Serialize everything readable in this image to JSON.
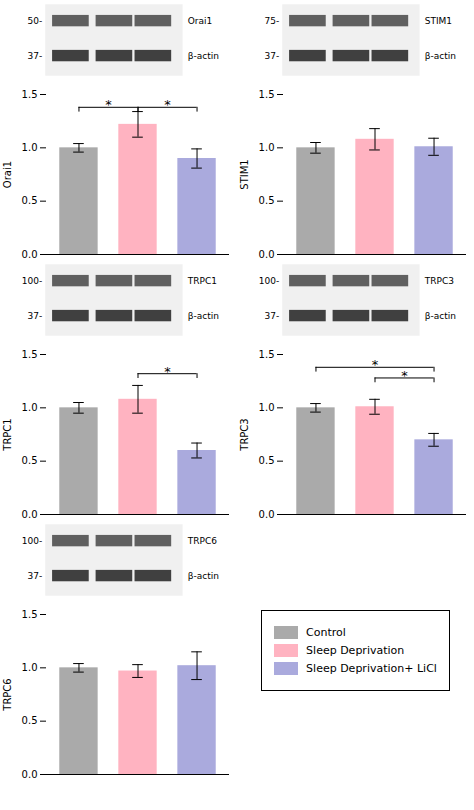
{
  "chart_data": [
    {
      "type": "bar",
      "categories": [
        "Control",
        "Sleep Deprivation",
        "Sleep Deprivation+ LiCl"
      ],
      "colors": [
        "#AAAAAA",
        "#FFB3C1",
        "#AAAADD"
      ],
      "values": [
        1.0,
        1.22,
        0.9
      ],
      "errors": [
        0.04,
        0.12,
        0.09
      ],
      "ylabel": "Orai1",
      "ylim": [
        0.0,
        1.5
      ],
      "yticks": [
        {
          "value": 0.0,
          "label": "0.0"
        },
        {
          "value": 0.5,
          "label": "0.5"
        },
        {
          "value": 1.0,
          "label": "1.0"
        },
        {
          "value": 1.5,
          "label": "1.5"
        }
      ],
      "tick_labels": "y",
      "annotations": [
        {
          "text": "*",
          "from": "Control",
          "to": "Sleep Deprivation",
          "y": 1.38
        },
        {
          "text": "*",
          "from": "Sleep Deprivation",
          "to": "Sleep Deprivation+ LiCl",
          "y": 1.38
        }
      ],
      "blot": {
        "kda": [
          "50-",
          "37-"
        ],
        "labels": [
          "Orai1",
          "β-actin"
        ]
      }
    },
    {
      "type": "bar",
      "categories": [
        "Control",
        "Sleep Deprivation",
        "Sleep Deprivation+ LiCl"
      ],
      "colors": [
        "#AAAAAA",
        "#FFB3C1",
        "#AAAADD"
      ],
      "values": [
        1.0,
        1.08,
        1.01
      ],
      "errors": [
        0.05,
        0.1,
        0.08
      ],
      "ylabel": "STIM1",
      "ylim": [
        0.0,
        1.5
      ],
      "yticks": [
        {
          "value": 0.0,
          "label": "0.0"
        },
        {
          "value": 0.5,
          "label": "0.5"
        },
        {
          "value": 1.0,
          "label": "1.0"
        },
        {
          "value": 1.5,
          "label": "1.5"
        }
      ],
      "tick_labels": "y",
      "annotations": [],
      "blot": {
        "kda": [
          "75-",
          "37-"
        ],
        "labels": [
          "STIM1",
          "β-actin"
        ]
      }
    },
    {
      "type": "bar",
      "categories": [
        "Control",
        "Sleep Deprivation",
        "Sleep Deprivation+ LiCl"
      ],
      "colors": [
        "#AAAAAA",
        "#FFB3C1",
        "#AAAADD"
      ],
      "values": [
        1.0,
        1.08,
        0.6
      ],
      "errors": [
        0.05,
        0.13,
        0.07
      ],
      "ylabel": "TRPC1",
      "ylim": [
        0.0,
        1.5
      ],
      "yticks": [
        {
          "value": 0.0,
          "label": "0.0"
        },
        {
          "value": 0.5,
          "label": "0.5"
        },
        {
          "value": 1.0,
          "label": "1.0"
        },
        {
          "value": 1.5,
          "label": "1.5"
        }
      ],
      "tick_labels": "y",
      "annotations": [
        {
          "text": "*",
          "from": "Sleep Deprivation",
          "to": "Sleep Deprivation+ LiCl",
          "y": 1.32
        }
      ],
      "blot": {
        "kda": [
          "100-",
          "37-"
        ],
        "labels": [
          "TRPC1",
          "β-actin"
        ]
      }
    },
    {
      "type": "bar",
      "categories": [
        "Control",
        "Sleep Deprivation",
        "Sleep Deprivation+ LiCl"
      ],
      "colors": [
        "#AAAAAA",
        "#FFB3C1",
        "#AAAADD"
      ],
      "values": [
        1.0,
        1.01,
        0.7
      ],
      "errors": [
        0.04,
        0.07,
        0.06
      ],
      "ylabel": "TRPC3",
      "ylim": [
        0.0,
        1.5
      ],
      "yticks": [
        {
          "value": 0.0,
          "label": "0.0"
        },
        {
          "value": 0.5,
          "label": "0.5"
        },
        {
          "value": 1.0,
          "label": "1.0"
        },
        {
          "value": 1.5,
          "label": "1.5"
        }
      ],
      "tick_labels": "y",
      "annotations": [
        {
          "text": "*",
          "from": "Control",
          "to": "Sleep Deprivation+ LiCl",
          "y": 1.38
        },
        {
          "text": "*",
          "from": "Sleep Deprivation",
          "to": "Sleep Deprivation+ LiCl",
          "y": 1.28
        }
      ],
      "blot": {
        "kda": [
          "100-",
          "37-"
        ],
        "labels": [
          "TRPC3",
          "β-actin"
        ]
      }
    },
    {
      "type": "bar",
      "categories": [
        "Control",
        "Sleep Deprivation",
        "Sleep Deprivation+ LiCl"
      ],
      "colors": [
        "#AAAAAA",
        "#FFB3C1",
        "#AAAADD"
      ],
      "values": [
        1.0,
        0.97,
        1.02
      ],
      "errors": [
        0.04,
        0.06,
        0.13
      ],
      "ylabel": "TRPC6",
      "ylim": [
        0.0,
        1.5
      ],
      "yticks": [
        {
          "value": 0.0,
          "label": "0.0"
        },
        {
          "value": 0.5,
          "label": "0.5"
        },
        {
          "value": 1.0,
          "label": "1.0"
        },
        {
          "value": 1.5,
          "label": "1.5"
        }
      ],
      "tick_labels": "y",
      "annotations": [],
      "legend": "lower right",
      "blot": {
        "kda": [
          "100-",
          "37-"
        ],
        "labels": [
          "TRPC6",
          "β-actin"
        ]
      }
    }
  ]
}
